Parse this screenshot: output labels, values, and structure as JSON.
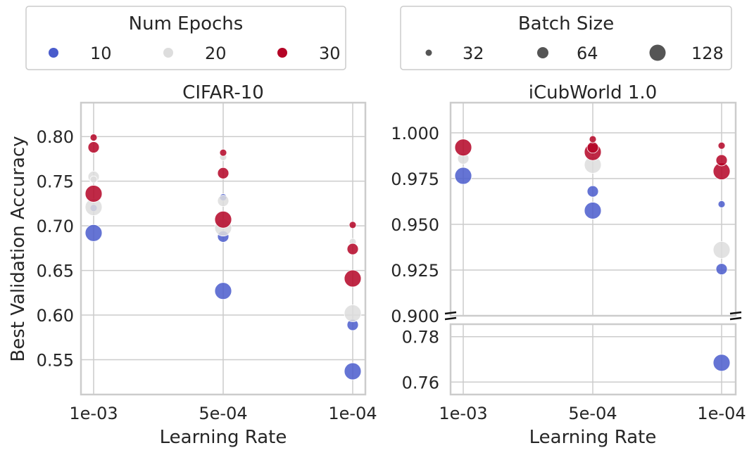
{
  "legends": {
    "epochs": {
      "title": "Num Epochs",
      "items": [
        {
          "label": "10",
          "color": "#4a5ccc"
        },
        {
          "label": "20",
          "color": "#dddddd"
        },
        {
          "label": "30",
          "color": "#b40426"
        }
      ]
    },
    "batch": {
      "title": "Batch Size",
      "items": [
        {
          "label": "32",
          "color": "#555555"
        },
        {
          "label": "64",
          "color": "#555555"
        },
        {
          "label": "128",
          "color": "#555555"
        }
      ]
    }
  },
  "colors": {
    "10": "#4a5ccc",
    "20": "#dddddd",
    "30": "#b40426"
  },
  "chart_data": [
    {
      "type": "scatter",
      "title": "CIFAR-10",
      "xlabel": "Learning Rate",
      "ylabel": "Best Validation Accuracy",
      "categories": [
        "1e-03",
        "5e-04",
        "1e-04"
      ],
      "yticks": [
        "0.55",
        "0.60",
        "0.65",
        "0.70",
        "0.75",
        "0.80"
      ],
      "ylim": [
        0.511,
        0.838
      ],
      "grid": true,
      "points": [
        {
          "x": "1e-03",
          "epochs": 10,
          "batch": 128,
          "y": 0.692
        },
        {
          "x": "1e-03",
          "epochs": 10,
          "batch": 32,
          "y": 0.72
        },
        {
          "x": "1e-03",
          "epochs": 20,
          "batch": 128,
          "y": 0.721
        },
        {
          "x": "1e-03",
          "epochs": 20,
          "batch": 64,
          "y": 0.755
        },
        {
          "x": "1e-03",
          "epochs": 20,
          "batch": 32,
          "y": 0.752
        },
        {
          "x": "1e-03",
          "epochs": 30,
          "batch": 128,
          "y": 0.736
        },
        {
          "x": "1e-03",
          "epochs": 30,
          "batch": 64,
          "y": 0.788
        },
        {
          "x": "1e-03",
          "epochs": 30,
          "batch": 32,
          "y": 0.799
        },
        {
          "x": "5e-04",
          "epochs": 10,
          "batch": 128,
          "y": 0.627
        },
        {
          "x": "5e-04",
          "epochs": 10,
          "batch": 64,
          "y": 0.688
        },
        {
          "x": "5e-04",
          "epochs": 10,
          "batch": 32,
          "y": 0.732
        },
        {
          "x": "5e-04",
          "epochs": 20,
          "batch": 128,
          "y": 0.698
        },
        {
          "x": "5e-04",
          "epochs": 20,
          "batch": 64,
          "y": 0.728
        },
        {
          "x": "5e-04",
          "epochs": 20,
          "batch": 32,
          "y": 0.777
        },
        {
          "x": "5e-04",
          "epochs": 30,
          "batch": 128,
          "y": 0.707
        },
        {
          "x": "5e-04",
          "epochs": 30,
          "batch": 64,
          "y": 0.759
        },
        {
          "x": "5e-04",
          "epochs": 30,
          "batch": 32,
          "y": 0.782
        },
        {
          "x": "1e-04",
          "epochs": 10,
          "batch": 128,
          "y": 0.537
        },
        {
          "x": "1e-04",
          "epochs": 10,
          "batch": 64,
          "y": 0.589
        },
        {
          "x": "1e-04",
          "epochs": 20,
          "batch": 128,
          "y": 0.602
        },
        {
          "x": "1e-04",
          "epochs": 20,
          "batch": 32,
          "y": 0.682
        },
        {
          "x": "1e-04",
          "epochs": 30,
          "batch": 128,
          "y": 0.641
        },
        {
          "x": "1e-04",
          "epochs": 30,
          "batch": 64,
          "y": 0.674
        },
        {
          "x": "1e-04",
          "epochs": 30,
          "batch": 32,
          "y": 0.701
        }
      ]
    },
    {
      "type": "scatter",
      "title": "iCubWorld 1.0",
      "xlabel": "Learning Rate",
      "ylabel": "",
      "categories": [
        "1e-03",
        "5e-04",
        "1e-04"
      ],
      "broken_axis": true,
      "upper": {
        "yticks": [
          "0.900",
          "0.925",
          "0.950",
          "0.975",
          "1.000"
        ],
        "ylim": [
          0.9,
          1.0165
        ]
      },
      "lower": {
        "yticks": [
          "0.76",
          "0.78"
        ],
        "ylim": [
          0.7545,
          0.7855
        ]
      },
      "grid": true,
      "points": [
        {
          "x": "1e-03",
          "epochs": 10,
          "batch": 128,
          "y": 0.9765
        },
        {
          "x": "1e-03",
          "epochs": 20,
          "batch": 64,
          "y": 0.986
        },
        {
          "x": "1e-03",
          "epochs": 30,
          "batch": 128,
          "y": 0.992
        },
        {
          "x": "5e-04",
          "epochs": 10,
          "batch": 128,
          "y": 0.9575
        },
        {
          "x": "5e-04",
          "epochs": 10,
          "batch": 64,
          "y": 0.968
        },
        {
          "x": "5e-04",
          "epochs": 20,
          "batch": 128,
          "y": 0.9825
        },
        {
          "x": "5e-04",
          "epochs": 30,
          "batch": 128,
          "y": 0.9895
        },
        {
          "x": "5e-04",
          "epochs": 30,
          "batch": 64,
          "y": 0.992
        },
        {
          "x": "5e-04",
          "epochs": 30,
          "batch": 32,
          "y": 0.9965
        },
        {
          "x": "1e-04",
          "epochs": 10,
          "batch": 64,
          "y": 0.9255
        },
        {
          "x": "1e-04",
          "epochs": 10,
          "batch": 32,
          "y": 0.961
        },
        {
          "x": "1e-04",
          "epochs": 10,
          "batch": 128,
          "y": 0.7685
        },
        {
          "x": "1e-04",
          "epochs": 20,
          "batch": 128,
          "y": 0.936
        },
        {
          "x": "1e-04",
          "epochs": 30,
          "batch": 128,
          "y": 0.979
        },
        {
          "x": "1e-04",
          "epochs": 30,
          "batch": 64,
          "y": 0.985
        },
        {
          "x": "1e-04",
          "epochs": 30,
          "batch": 32,
          "y": 0.993
        }
      ]
    }
  ]
}
